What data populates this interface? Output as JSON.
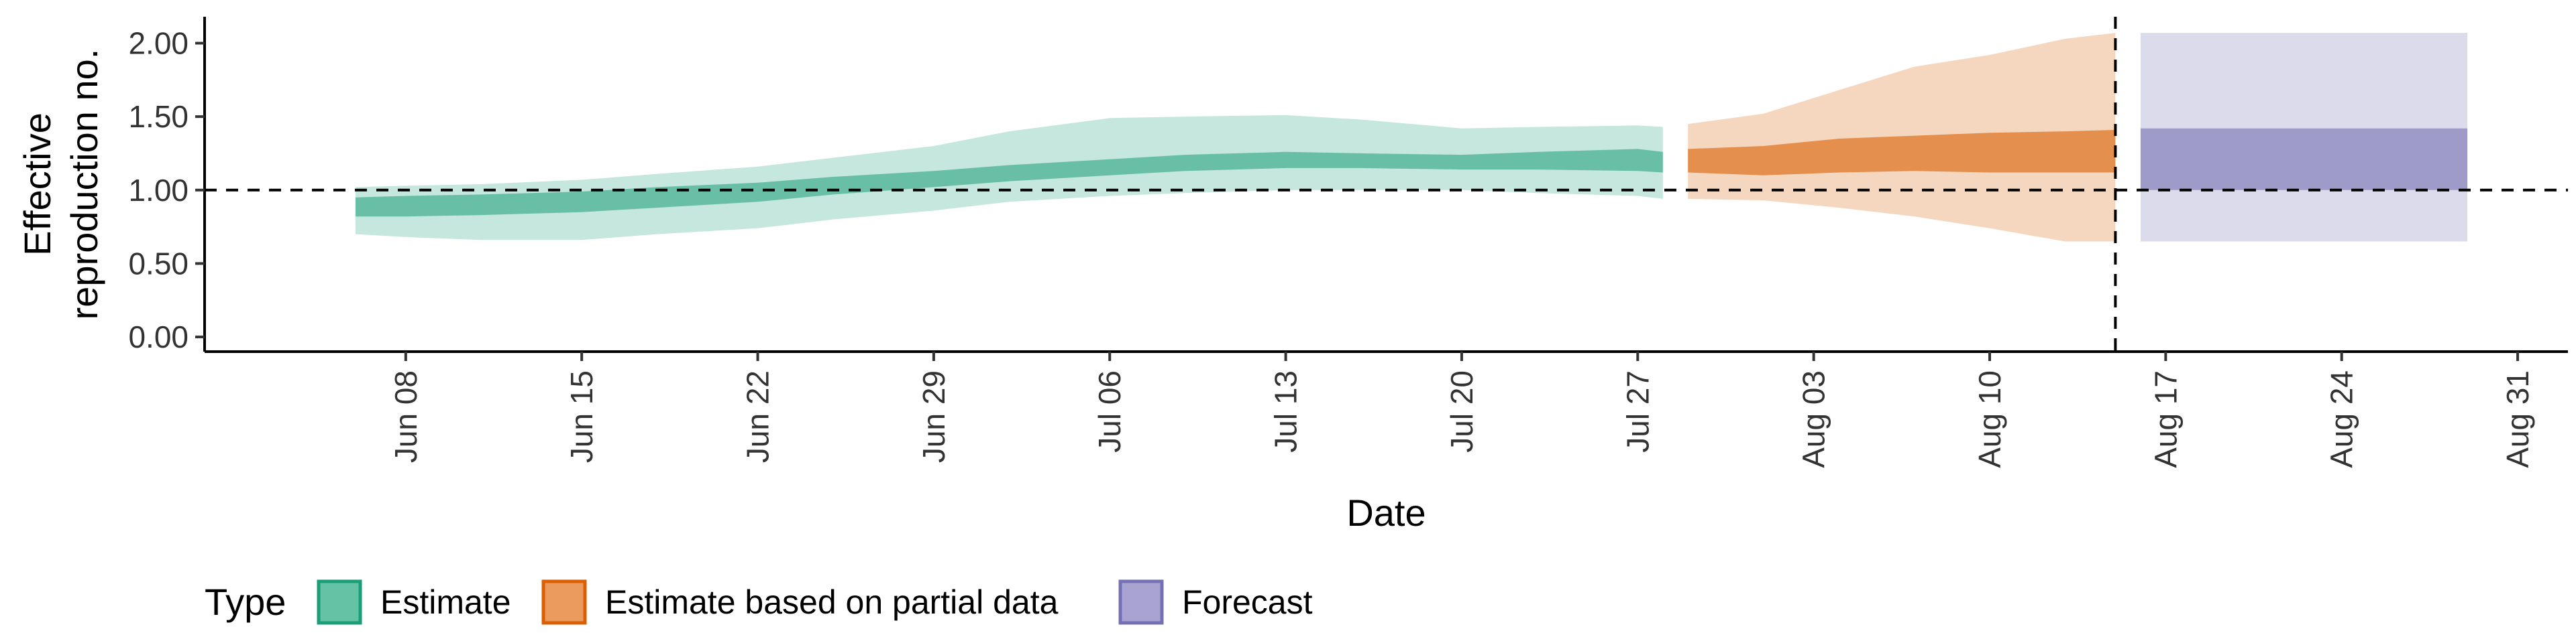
{
  "chart_data": {
    "type": "area",
    "xlabel": "Date",
    "ylabel_lines": [
      "Effective",
      "reproduction no."
    ],
    "x_ticks": [
      "Jun 08",
      "Jun 15",
      "Jun 22",
      "Jun 29",
      "Jul 06",
      "Jul 13",
      "Jul 20",
      "Jul 27",
      "Aug 03",
      "Aug 10",
      "Aug 17",
      "Aug 24",
      "Aug 31"
    ],
    "x_tick_dates": [
      "2020-06-08",
      "2020-06-15",
      "2020-06-22",
      "2020-06-29",
      "2020-07-06",
      "2020-07-13",
      "2020-07-20",
      "2020-07-27",
      "2020-08-03",
      "2020-08-10",
      "2020-08-17",
      "2020-08-24",
      "2020-08-31"
    ],
    "x_range": [
      "2020-05-31",
      "2020-09-02"
    ],
    "y_ticks": [
      "0.00",
      "0.50",
      "1.00",
      "1.50",
      "2.00"
    ],
    "y_tick_values": [
      0,
      0.5,
      1.0,
      1.5,
      2.0
    ],
    "ylim": [
      -0.1,
      2.18
    ],
    "hline": 1.0,
    "vline": "2020-08-15",
    "grid": false,
    "legend": {
      "title": "Type",
      "position": "bottom",
      "items": [
        {
          "label": "Estimate",
          "fill": "#66c2a5",
          "border": "#1b9e77"
        },
        {
          "label": "Estimate based on partial data",
          "fill": "#ec9b5e",
          "border": "#d95f02"
        },
        {
          "label": "Forecast",
          "fill": "#a8a3d0",
          "border": "#7570b3"
        }
      ]
    },
    "series": [
      {
        "name": "Estimate",
        "color": "#1b9e77",
        "inner_opacity": 0.55,
        "outer_opacity": 0.25,
        "x": [
          "2020-06-06",
          "2020-06-08",
          "2020-06-11",
          "2020-06-15",
          "2020-06-18",
          "2020-06-22",
          "2020-06-25",
          "2020-06-29",
          "2020-07-02",
          "2020-07-06",
          "2020-07-09",
          "2020-07-13",
          "2020-07-16",
          "2020-07-20",
          "2020-07-23",
          "2020-07-27",
          "2020-07-28"
        ],
        "lower90": [
          0.7,
          0.68,
          0.66,
          0.66,
          0.7,
          0.74,
          0.8,
          0.86,
          0.92,
          0.96,
          0.98,
          1.0,
          1.0,
          1.0,
          0.98,
          0.96,
          0.94
        ],
        "lower50": [
          0.82,
          0.82,
          0.83,
          0.85,
          0.88,
          0.92,
          0.97,
          1.02,
          1.06,
          1.1,
          1.13,
          1.15,
          1.15,
          1.14,
          1.14,
          1.13,
          1.12
        ],
        "upper50": [
          0.95,
          0.96,
          0.97,
          0.99,
          1.02,
          1.05,
          1.09,
          1.13,
          1.17,
          1.21,
          1.24,
          1.26,
          1.25,
          1.24,
          1.26,
          1.28,
          1.26
        ],
        "upper90": [
          1.02,
          1.03,
          1.04,
          1.07,
          1.11,
          1.16,
          1.22,
          1.3,
          1.4,
          1.49,
          1.5,
          1.51,
          1.48,
          1.42,
          1.43,
          1.44,
          1.43
        ]
      },
      {
        "name": "Estimate based on partial data",
        "color": "#d95f02",
        "inner_opacity": 0.6,
        "outer_opacity": 0.25,
        "x": [
          "2020-07-29",
          "2020-08-01",
          "2020-08-04",
          "2020-08-07",
          "2020-08-10",
          "2020-08-13",
          "2020-08-15"
        ],
        "lower90": [
          0.94,
          0.93,
          0.88,
          0.82,
          0.74,
          0.65,
          0.65
        ],
        "lower50": [
          1.12,
          1.1,
          1.12,
          1.13,
          1.12,
          1.12,
          1.12
        ],
        "upper50": [
          1.28,
          1.3,
          1.35,
          1.37,
          1.39,
          1.4,
          1.41
        ],
        "upper90": [
          1.45,
          1.52,
          1.68,
          1.84,
          1.92,
          2.03,
          2.07
        ]
      },
      {
        "name": "Forecast",
        "color": "#7570b3",
        "inner_opacity": 0.6,
        "outer_opacity": 0.25,
        "x": [
          "2020-08-16",
          "2020-08-29"
        ],
        "lower90": [
          0.65,
          0.65
        ],
        "lower50": [
          1.0,
          1.0
        ],
        "upper50": [
          1.42,
          1.42
        ],
        "upper90": [
          2.07,
          2.07
        ]
      }
    ]
  }
}
